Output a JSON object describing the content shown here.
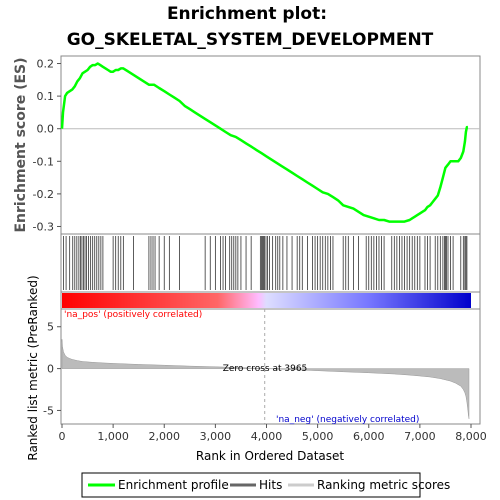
{
  "chart_data": {
    "type": "line",
    "title_line1": "Enrichment plot:",
    "title_line2": "GO_SKELETAL_SYSTEM_DEVELOPMENT",
    "ylabel_top": "Enrichment score (ES)",
    "ylabel_bottom": "Ranked list metric (PreRanked)",
    "xlabel": "Rank in Ordered Dataset",
    "xlim": [
      0,
      8000
    ],
    "x_ticks": [
      0,
      1000,
      2000,
      3000,
      4000,
      5000,
      6000,
      7000,
      8000
    ],
    "x_tick_labels": [
      "0",
      "1,000",
      "2,000",
      "3,000",
      "4,000",
      "5,000",
      "6,000",
      "7,000",
      "8,000"
    ],
    "es_ylim": [
      -0.32,
      0.22
    ],
    "es_ticks": [
      0.2,
      0.1,
      0.0,
      -0.1,
      -0.2,
      -0.3
    ],
    "es_tick_labels": [
      "0.2",
      "0.1",
      "0.0",
      "-0.1",
      "-0.2",
      "-0.3"
    ],
    "metric_ylim": [
      -6.5,
      7
    ],
    "metric_ticks": [
      5,
      0,
      -5
    ],
    "metric_tick_labels": [
      "5",
      "0",
      "-5"
    ],
    "zero_cross_rank": 3965,
    "zero_cross_label": "Zero cross at 3965",
    "pos_label": "'na_pos' (positively correlated)",
    "neg_label": "'na_neg' (negatively correlated)",
    "total_genes": 7960,
    "enrichment_profile": {
      "name": "Enrichment profile",
      "color": "#00ff00",
      "x": [
        0,
        20,
        60,
        100,
        150,
        200,
        250,
        300,
        350,
        400,
        450,
        500,
        550,
        600,
        650,
        700,
        750,
        800,
        850,
        900,
        950,
        1000,
        1050,
        1100,
        1150,
        1200,
        1300,
        1400,
        1500,
        1600,
        1700,
        1800,
        1900,
        2000,
        2100,
        2200,
        2300,
        2400,
        2500,
        2600,
        2700,
        2800,
        2900,
        3000,
        3100,
        3200,
        3300,
        3400,
        3500,
        3600,
        3700,
        3800,
        3900,
        4000,
        4100,
        4200,
        4300,
        4400,
        4500,
        4600,
        4700,
        4800,
        4900,
        5000,
        5100,
        5200,
        5300,
        5400,
        5500,
        5600,
        5700,
        5800,
        5900,
        6000,
        6100,
        6200,
        6300,
        6400,
        6500,
        6600,
        6700,
        6800,
        6850,
        6900,
        6950,
        7000,
        7050,
        7100,
        7150,
        7200,
        7250,
        7300,
        7350,
        7400,
        7450,
        7500,
        7550,
        7600,
        7650,
        7700,
        7750,
        7800,
        7850,
        7880,
        7900,
        7920,
        7940
      ],
      "y": [
        0.0,
        0.05,
        0.1,
        0.11,
        0.115,
        0.12,
        0.13,
        0.145,
        0.155,
        0.17,
        0.175,
        0.18,
        0.19,
        0.195,
        0.195,
        0.2,
        0.195,
        0.19,
        0.185,
        0.18,
        0.175,
        0.175,
        0.18,
        0.18,
        0.185,
        0.185,
        0.175,
        0.165,
        0.155,
        0.145,
        0.135,
        0.135,
        0.125,
        0.115,
        0.105,
        0.095,
        0.085,
        0.07,
        0.06,
        0.05,
        0.04,
        0.03,
        0.02,
        0.01,
        0.0,
        -0.01,
        -0.02,
        -0.025,
        -0.035,
        -0.045,
        -0.055,
        -0.065,
        -0.075,
        -0.085,
        -0.095,
        -0.105,
        -0.115,
        -0.125,
        -0.135,
        -0.145,
        -0.155,
        -0.165,
        -0.175,
        -0.185,
        -0.195,
        -0.2,
        -0.21,
        -0.22,
        -0.235,
        -0.24,
        -0.245,
        -0.255,
        -0.265,
        -0.27,
        -0.275,
        -0.28,
        -0.28,
        -0.285,
        -0.285,
        -0.285,
        -0.285,
        -0.28,
        -0.275,
        -0.27,
        -0.265,
        -0.26,
        -0.255,
        -0.25,
        -0.24,
        -0.235,
        -0.225,
        -0.215,
        -0.205,
        -0.18,
        -0.15,
        -0.12,
        -0.11,
        -0.1,
        -0.1,
        -0.1,
        -0.1,
        -0.09,
        -0.07,
        -0.04,
        -0.01,
        0.005,
        0.005
      ]
    },
    "hits": {
      "name": "Hits",
      "ranks": [
        30,
        80,
        150,
        210,
        250,
        290,
        330,
        360,
        390,
        420,
        450,
        480,
        520,
        560,
        600,
        640,
        680,
        720,
        760,
        800,
        1000,
        1050,
        1100,
        1150,
        1200,
        1400,
        1700,
        1740,
        1780,
        1820,
        1900,
        2000,
        2100,
        2300,
        2800,
        2900,
        3000,
        3100,
        3150,
        3200,
        3280,
        3320,
        3360,
        3400,
        3440,
        3500,
        3600,
        3700,
        3880,
        3900,
        3920,
        3940,
        3960,
        3990,
        4020,
        4060,
        4120,
        4180,
        4220,
        4260,
        4320,
        4400,
        4500,
        4600,
        4650,
        4700,
        4800,
        4900,
        4950,
        5000,
        5050,
        5100,
        5150,
        5200,
        5250,
        5300,
        5500,
        5550,
        5600,
        5700,
        5800,
        5950,
        6000,
        6050,
        6100,
        6150,
        6200,
        6250,
        6300,
        6450,
        6500,
        6550,
        6600,
        6650,
        6700,
        6750,
        6800,
        6850,
        6900,
        6950,
        7000,
        7100,
        7150,
        7200,
        7300,
        7350,
        7400,
        7450,
        7480,
        7500,
        7520,
        7550,
        7600,
        7650,
        7800,
        7850,
        7880,
        7900,
        7920
      ]
    },
    "ranking_metric": {
      "name": "Ranking metric scores",
      "x": [
        0,
        10,
        30,
        60,
        100,
        150,
        200,
        300,
        400,
        600,
        800,
        1000,
        1500,
        2000,
        2500,
        3000,
        3500,
        3965,
        4500,
        5000,
        5500,
        6000,
        6500,
        6800,
        7000,
        7200,
        7400,
        7600,
        7700,
        7800,
        7850,
        7880,
        7900,
        7920,
        7940,
        7950,
        7960
      ],
      "y": [
        3.5,
        2.6,
        2.0,
        1.6,
        1.35,
        1.2,
        1.1,
        0.95,
        0.85,
        0.75,
        0.68,
        0.62,
        0.5,
        0.4,
        0.3,
        0.22,
        0.12,
        0.0,
        -0.12,
        -0.25,
        -0.38,
        -0.5,
        -0.65,
        -0.78,
        -0.88,
        -1.0,
        -1.2,
        -1.5,
        -1.75,
        -2.1,
        -2.5,
        -2.9,
        -3.3,
        -4.0,
        -5.0,
        -5.6,
        -6.0
      ]
    },
    "color_bar": {
      "colors": [
        "#ff0000",
        "#ff6666",
        "#ffbbff",
        "#ddddff",
        "#7777ff",
        "#0000cc"
      ],
      "stops": [
        0,
        0.38,
        0.48,
        0.5,
        0.75,
        1.0
      ]
    },
    "legend": [
      {
        "label": "Enrichment profile",
        "color": "#00ff00"
      },
      {
        "label": "Hits",
        "color": "#666666"
      },
      {
        "label": "Ranking metric scores",
        "color": "#cccccc"
      }
    ]
  }
}
